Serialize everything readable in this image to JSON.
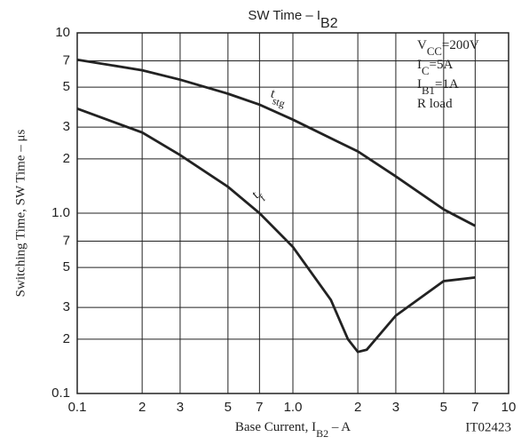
{
  "chart_data": {
    "type": "line",
    "title": [
      "SW Time  –  I",
      "B2"
    ],
    "x_label": [
      "Base Current, I",
      "B2",
      "  –  A"
    ],
    "y_label": "Switching Time, SW Time  –  μs",
    "figure_id": "IT02423",
    "annotations": [
      [
        "V",
        "CC",
        "=200V"
      ],
      [
        "I",
        "C",
        "=5A"
      ],
      [
        "I",
        "B1",
        "=1A"
      ],
      [
        "R load"
      ]
    ],
    "x_log": true,
    "y_log": true,
    "grid": true,
    "xlim": [
      0.1,
      10
    ],
    "ylim": [
      0.1,
      10
    ],
    "xticks": [
      0.1,
      {
        "value": 0.2,
        "label": "2"
      },
      {
        "value": 0.3,
        "label": "3"
      },
      {
        "value": 0.5,
        "label": "5"
      },
      {
        "value": 0.7,
        "label": "7"
      },
      {
        "value": 1,
        "label": "1.0"
      },
      2,
      3,
      5,
      7,
      10
    ],
    "yticks": [
      0.1,
      {
        "value": 0.2,
        "label": "2"
      },
      {
        "value": 0.3,
        "label": "3"
      },
      {
        "value": 0.5,
        "label": "5"
      },
      {
        "value": 0.7,
        "label": "7"
      },
      {
        "value": 1,
        "label": "1.0"
      },
      2,
      3,
      5,
      7,
      10
    ],
    "series": [
      {
        "name": [
          "t",
          "stg"
        ],
        "color": "#222222",
        "x": [
          0.1,
          0.2,
          0.3,
          0.5,
          0.7,
          1.0,
          2,
          3,
          5,
          7
        ],
        "values": [
          7.1,
          6.2,
          5.5,
          4.6,
          4.0,
          3.3,
          2.2,
          1.6,
          1.05,
          0.85
        ]
      },
      {
        "name": [
          "t",
          "f"
        ],
        "color": "#222222",
        "x": [
          0.1,
          0.2,
          0.3,
          0.5,
          0.7,
          1.0,
          1.5,
          1.8,
          2.0,
          2.2,
          3,
          5,
          7
        ],
        "values": [
          3.8,
          2.8,
          2.1,
          1.4,
          1.0,
          0.65,
          0.33,
          0.2,
          0.17,
          0.175,
          0.27,
          0.42,
          0.44
        ]
      }
    ]
  }
}
